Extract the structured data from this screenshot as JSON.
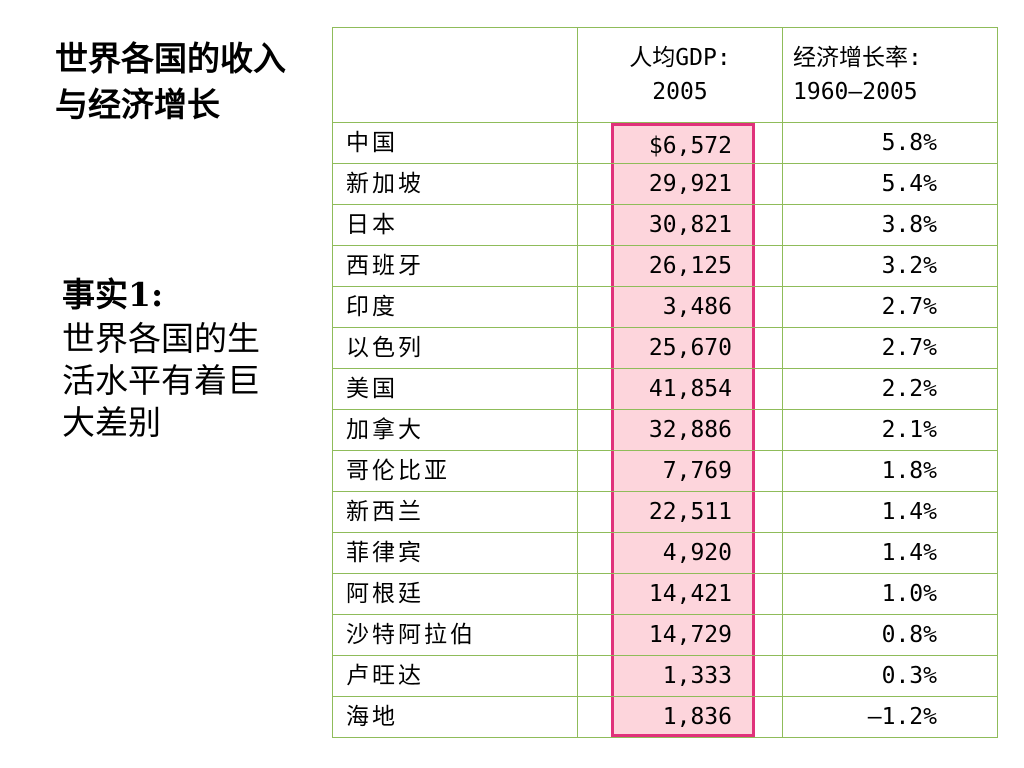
{
  "title": "世界各国的收入与经济增长",
  "fact": {
    "heading": "事实1:",
    "body": "世界各国的生活水平有着巨大差别"
  },
  "table": {
    "headers": {
      "country": "",
      "gdp_line1": "人均GDP:",
      "gdp_line2": "2005",
      "growth_line1": "经济增长率:",
      "growth_line2": "1960–2005"
    },
    "rows": [
      {
        "country": "中国",
        "gdp": "$6,572",
        "growth": "5.8%"
      },
      {
        "country": "新加坡",
        "gdp": "29,921",
        "growth": "5.4%"
      },
      {
        "country": "日本",
        "gdp": "30,821",
        "growth": "3.8%"
      },
      {
        "country": "西班牙",
        "gdp": "26,125",
        "growth": "3.2%"
      },
      {
        "country": "印度",
        "gdp": "3,486",
        "growth": "2.7%"
      },
      {
        "country": "以色列",
        "gdp": "25,670",
        "growth": "2.7%"
      },
      {
        "country": "美国",
        "gdp": "41,854",
        "growth": "2.2%"
      },
      {
        "country": "加拿大",
        "gdp": "32,886",
        "growth": "2.1%"
      },
      {
        "country": "哥伦比亚",
        "gdp": "7,769",
        "growth": "1.8%"
      },
      {
        "country": "新西兰",
        "gdp": "22,511",
        "growth": "1.4%"
      },
      {
        "country": "菲律宾",
        "gdp": "4,920",
        "growth": "1.4%"
      },
      {
        "country": "阿根廷",
        "gdp": "14,421",
        "growth": "1.0%"
      },
      {
        "country": "沙特阿拉伯",
        "gdp": "14,729",
        "growth": "0.8%"
      },
      {
        "country": "卢旺达",
        "gdp": "1,333",
        "growth": "0.3%"
      },
      {
        "country": "海地",
        "gdp": "1,836",
        "growth": "–1.2%"
      }
    ]
  },
  "colors": {
    "table_border": "#8fbc5a",
    "highlight_fill": "#fdd5dc",
    "highlight_border": "#e0317b"
  }
}
